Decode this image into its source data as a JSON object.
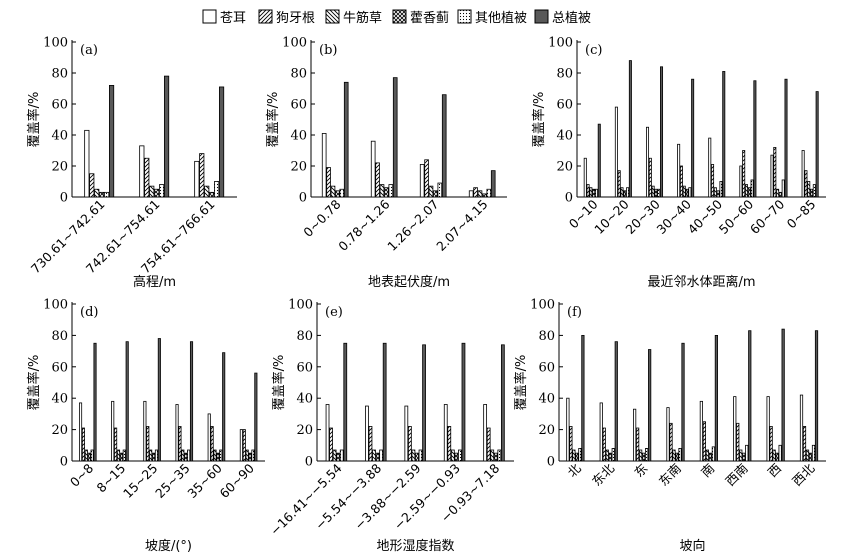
{
  "legend": {
    "items": [
      {
        "label": "苍耳",
        "pattern": "empty"
      },
      {
        "label": "狗牙根",
        "pattern": "diag-right"
      },
      {
        "label": "牛筋草",
        "pattern": "diag-left"
      },
      {
        "label": "藿香蓟",
        "pattern": "cross"
      },
      {
        "label": "其他植被",
        "pattern": "dots"
      },
      {
        "label": "总植被",
        "pattern": "solid"
      }
    ]
  },
  "colors": {
    "solid_fill": "#595959",
    "stroke": "#000000",
    "background": "#ffffff"
  },
  "chart_data": [
    {
      "type": "bar",
      "panel": "(a)",
      "ylabel": "覆盖率/%",
      "xlabel": "高程/m",
      "ylim": [
        0,
        100
      ],
      "yticks": [
        0,
        20,
        40,
        60,
        80,
        100
      ],
      "categories": [
        "730.61~742.61",
        "742.61~754.61",
        "754.61~766.61"
      ],
      "series": [
        {
          "name": "苍耳",
          "values": [
            43,
            33,
            23
          ]
        },
        {
          "name": "狗牙根",
          "values": [
            15,
            25,
            28
          ]
        },
        {
          "name": "牛筋草",
          "values": [
            5,
            7,
            7
          ]
        },
        {
          "name": "藿香蓟",
          "values": [
            3,
            5,
            3
          ]
        },
        {
          "name": "其他植被",
          "values": [
            3,
            8,
            10
          ]
        },
        {
          "name": "总植被",
          "values": [
            72,
            78,
            71
          ]
        }
      ]
    },
    {
      "type": "bar",
      "panel": "(b)",
      "ylabel": "覆盖率/%",
      "xlabel": "地表起伏度/m",
      "ylim": [
        0,
        100
      ],
      "yticks": [
        0,
        20,
        40,
        60,
        80,
        100
      ],
      "categories": [
        "0~0.78",
        "0.78~1.26",
        "1.26~2.07",
        "2.07~4.15"
      ],
      "series": [
        {
          "name": "苍耳",
          "values": [
            41,
            36,
            21,
            4
          ]
        },
        {
          "name": "狗牙根",
          "values": [
            19,
            22,
            24,
            6
          ]
        },
        {
          "name": "牛筋草",
          "values": [
            7,
            8,
            7,
            4
          ]
        },
        {
          "name": "藿香蓟",
          "values": [
            4,
            6,
            4,
            2
          ]
        },
        {
          "name": "其他植被",
          "values": [
            5,
            8,
            9,
            5
          ]
        },
        {
          "name": "总植被",
          "values": [
            74,
            77,
            66,
            17
          ]
        }
      ]
    },
    {
      "type": "bar",
      "panel": "(c)",
      "ylabel": "覆盖率/%",
      "xlabel": "最近邻水体距离/m",
      "ylim": [
        0,
        100
      ],
      "yticks": [
        0,
        20,
        40,
        60,
        80,
        100
      ],
      "categories": [
        "0~10",
        "10~20",
        "20~30",
        "30~40",
        "40~50",
        "50~60",
        "60~70",
        "0~85"
      ],
      "series": [
        {
          "name": "苍耳",
          "values": [
            25,
            58,
            45,
            34,
            38,
            20,
            27,
            30
          ]
        },
        {
          "name": "狗牙根",
          "values": [
            8,
            17,
            25,
            20,
            21,
            30,
            32,
            17
          ]
        },
        {
          "name": "牛筋草",
          "values": [
            6,
            6,
            7,
            7,
            6,
            8,
            5,
            10
          ]
        },
        {
          "name": "藿香蓟",
          "values": [
            5,
            4,
            5,
            5,
            4,
            6,
            3,
            5
          ]
        },
        {
          "name": "其他植被",
          "values": [
            5,
            6,
            5,
            6,
            10,
            11,
            11,
            8
          ]
        },
        {
          "name": "总植被",
          "values": [
            47,
            88,
            84,
            76,
            81,
            75,
            76,
            68
          ]
        }
      ]
    },
    {
      "type": "bar",
      "panel": "(d)",
      "ylabel": "覆盖率/%",
      "xlabel": "坡度/(°)",
      "ylim": [
        0,
        100
      ],
      "yticks": [
        0,
        20,
        40,
        60,
        80,
        100
      ],
      "categories": [
        "0~8",
        "8~15",
        "15~25",
        "25~35",
        "35~60",
        "60~90"
      ],
      "series": [
        {
          "name": "苍耳",
          "values": [
            37,
            38,
            38,
            36,
            30,
            20
          ]
        },
        {
          "name": "狗牙根",
          "values": [
            21,
            21,
            22,
            22,
            22,
            20
          ]
        },
        {
          "name": "牛筋草",
          "values": [
            7,
            7,
            7,
            7,
            7,
            7
          ]
        },
        {
          "name": "藿香蓟",
          "values": [
            5,
            5,
            5,
            5,
            5,
            5
          ]
        },
        {
          "name": "其他植被",
          "values": [
            7,
            7,
            7,
            7,
            7,
            7
          ]
        },
        {
          "name": "总植被",
          "values": [
            75,
            76,
            78,
            76,
            69,
            56
          ]
        }
      ]
    },
    {
      "type": "bar",
      "panel": "(e)",
      "ylabel": "覆盖率/%",
      "xlabel": "地形湿度指数",
      "ylim": [
        0,
        100
      ],
      "yticks": [
        0,
        20,
        40,
        60,
        80,
        100
      ],
      "categories": [
        "−16.41~−5.54",
        "−5.54~−3.88",
        "−3.88~−2.59",
        "−2.59~−0.93",
        "−0.93~7.18"
      ],
      "series": [
        {
          "name": "苍耳",
          "values": [
            36,
            35,
            35,
            36,
            36
          ]
        },
        {
          "name": "狗牙根",
          "values": [
            21,
            22,
            22,
            22,
            21
          ]
        },
        {
          "name": "牛筋草",
          "values": [
            7,
            7,
            7,
            7,
            7
          ]
        },
        {
          "name": "藿香蓟",
          "values": [
            5,
            5,
            5,
            5,
            5
          ]
        },
        {
          "name": "其他植被",
          "values": [
            7,
            7,
            7,
            7,
            7
          ]
        },
        {
          "name": "总植被",
          "values": [
            75,
            75,
            74,
            75,
            74
          ]
        }
      ]
    },
    {
      "type": "bar",
      "panel": "(f)",
      "ylabel": "覆盖率/%",
      "xlabel": "坡向",
      "ylim": [
        0,
        100
      ],
      "yticks": [
        0,
        20,
        40,
        60,
        80,
        100
      ],
      "categories": [
        "北",
        "东北",
        "东",
        "东南",
        "南",
        "西南",
        "西",
        "西北"
      ],
      "series": [
        {
          "name": "苍耳",
          "values": [
            40,
            37,
            33,
            34,
            38,
            41,
            41,
            42
          ]
        },
        {
          "name": "狗牙根",
          "values": [
            22,
            21,
            21,
            24,
            25,
            24,
            22,
            22
          ]
        },
        {
          "name": "牛筋草",
          "values": [
            7,
            7,
            7,
            7,
            7,
            7,
            7,
            7
          ]
        },
        {
          "name": "藿香蓟",
          "values": [
            5,
            5,
            5,
            5,
            5,
            5,
            5,
            5
          ]
        },
        {
          "name": "其他植被",
          "values": [
            8,
            8,
            8,
            8,
            9,
            10,
            10,
            10
          ]
        },
        {
          "name": "总植被",
          "values": [
            80,
            76,
            71,
            75,
            80,
            83,
            84,
            83
          ]
        }
      ]
    }
  ]
}
